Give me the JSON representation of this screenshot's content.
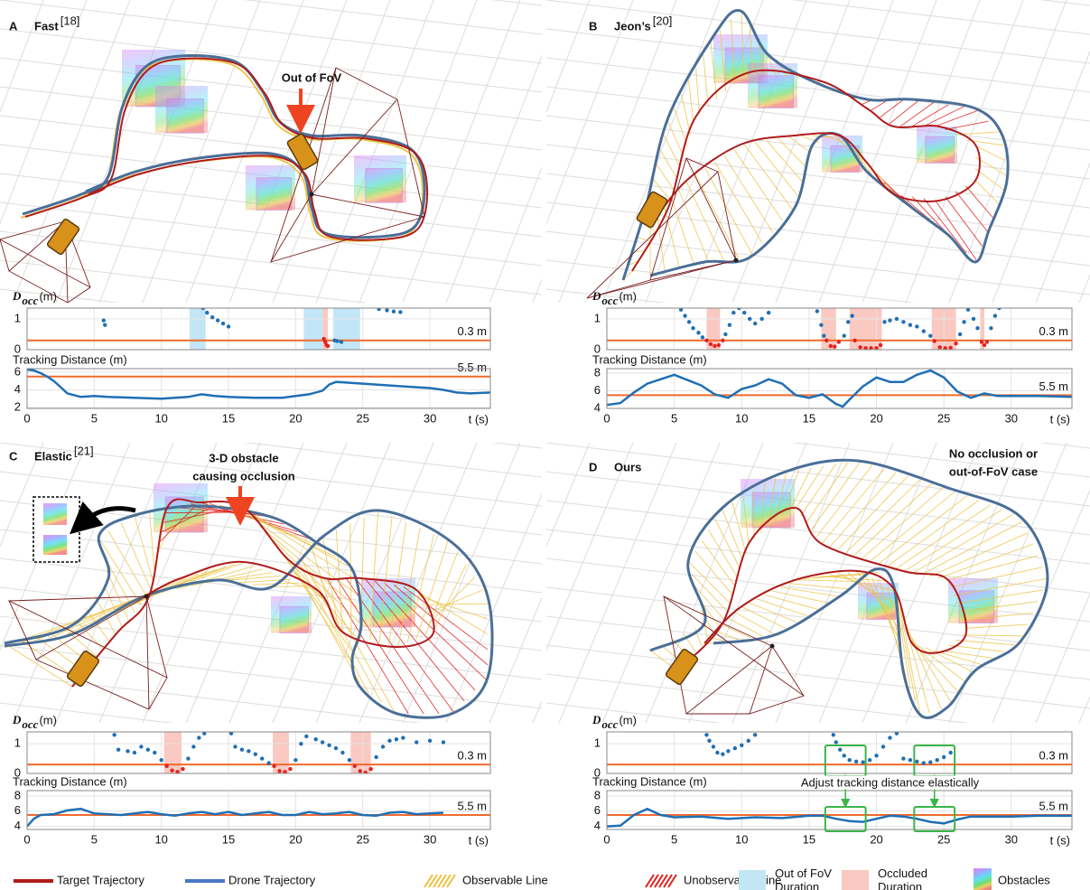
{
  "panels": [
    {
      "letter": "A",
      "title": "Fast",
      "ref": "[18]",
      "annotation": [
        "Out of FoV"
      ]
    },
    {
      "letter": "B",
      "title": "Jeon’s",
      "ref": "[20]"
    },
    {
      "letter": "C",
      "title": "Elastic",
      "ref": "[21]",
      "annotation": [
        "3-D obstacle",
        "causing occlusion"
      ]
    },
    {
      "letter": "D",
      "title": "Ours",
      "annotation": [
        "No occlusion or",
        "out-of-FoV case"
      ],
      "highlights": [
        [
          16.2,
          19.2
        ],
        [
          22.8,
          25.8
        ]
      ],
      "highlight_label": "Adjust tracking distance elastically"
    }
  ],
  "chart_data": [
    {
      "type": "scatter",
      "ylabel": {
        "main": "D",
        "sub": "occ",
        "unit": "(m)"
      },
      "xlim": [
        0,
        34.5
      ],
      "ylim": [
        0,
        1.35
      ],
      "yticks": [
        0,
        1
      ],
      "xticks": [
        0,
        5,
        10,
        15,
        20,
        25,
        30
      ],
      "xtick_labels": false,
      "threshold": {
        "value": 0.3,
        "label": "0.3 m",
        "color": "#f26a2e"
      },
      "spans": [
        {
          "x": [
            12.1,
            13.3
          ],
          "color": "#c3e6f7"
        },
        {
          "x": [
            20.6,
            22.0
          ],
          "color": "#c3e6f7"
        },
        {
          "x": [
            22.0,
            22.4
          ],
          "color": "#f9c9c2"
        },
        {
          "x": [
            22.8,
            24.8
          ],
          "color": "#c3e6f7"
        }
      ],
      "series": [
        {
          "color": "#1f6fb4",
          "x": [
            5.7,
            5.8,
            13.1,
            13.4,
            13.8,
            14.2,
            14.6,
            15,
            22.9,
            23.1,
            23.4,
            26.2,
            26.8,
            27.3,
            27.8
          ],
          "values": [
            0.95,
            0.8,
            1.35,
            1.2,
            1.05,
            0.95,
            0.85,
            0.75,
            0.3,
            0.28,
            0.25,
            1.32,
            1.28,
            1.24,
            1.22
          ]
        },
        {
          "color": "#e8201c",
          "x": [
            22.1,
            22.2,
            22.3,
            22.4
          ],
          "values": [
            0.35,
            0.25,
            0.15,
            0.12
          ]
        }
      ]
    },
    {
      "type": "line",
      "ylabel": "Tracking Distance (m)",
      "xlabel": "t (s)",
      "xlim": [
        0,
        34.5
      ],
      "ylim": [
        1.9,
        6.4
      ],
      "yticks": [
        2,
        4,
        6
      ],
      "xticks": [
        0,
        5,
        10,
        15,
        20,
        25,
        30
      ],
      "xtick_labels": true,
      "threshold": {
        "value": 5.5,
        "label": "5.5 m",
        "color": "#f26a2e"
      },
      "series": [
        {
          "color": "#1f6fb4",
          "x": [
            0,
            0.5,
            1,
            1.5,
            2,
            2.5,
            3,
            4,
            5,
            6,
            8,
            10,
            12,
            13,
            14,
            15,
            17,
            19,
            20,
            21,
            22,
            22.5,
            23,
            24,
            25,
            26,
            28,
            30,
            31,
            32,
            33,
            34.5
          ],
          "values": [
            6.3,
            6.2,
            5.9,
            5.5,
            5.0,
            4.3,
            3.6,
            3.2,
            3.3,
            3.2,
            3.1,
            3.0,
            3.2,
            3.5,
            3.3,
            3.2,
            3.1,
            3.1,
            3.3,
            3.5,
            3.9,
            4.6,
            4.9,
            4.8,
            4.7,
            4.6,
            4.4,
            4.2,
            4.0,
            3.7,
            3.6,
            3.7
          ]
        }
      ]
    },
    {
      "type": "scatter",
      "ylabel": {
        "main": "D",
        "sub": "occ",
        "unit": "(m)"
      },
      "xlim": [
        0,
        34.5
      ],
      "ylim": [
        0,
        1.35
      ],
      "yticks": [
        0,
        1
      ],
      "xticks": [
        0,
        5,
        10,
        15,
        20,
        25,
        30
      ],
      "xtick_labels": false,
      "threshold": {
        "value": 0.3,
        "label": "0.3 m",
        "color": "#f26a2e"
      },
      "spans": [
        {
          "x": [
            7.4,
            8.4
          ],
          "color": "#f9c9c2"
        },
        {
          "x": [
            15.9,
            17.0
          ],
          "color": "#f9c9c2"
        },
        {
          "x": [
            18.0,
            20.4
          ],
          "color": "#f9c9c2"
        },
        {
          "x": [
            24.1,
            25.9
          ],
          "color": "#f9c9c2"
        },
        {
          "x": [
            27.7,
            28.0
          ],
          "color": "#f9c9c2"
        }
      ],
      "series": [
        {
          "color": "#1f6fb4",
          "x": [
            5.5,
            5.8,
            6.1,
            6.4,
            6.8,
            7.1,
            8.8,
            9.1,
            9.4,
            9.8,
            10.2,
            10.6,
            11,
            11.5,
            12,
            15.6,
            15.9,
            16.1,
            17.6,
            17.9,
            18.2,
            20.6,
            21,
            21.5,
            22,
            22.5,
            23,
            23.5,
            24,
            26.2,
            26.5,
            26.8,
            27.2,
            27.5,
            28.5,
            28.8,
            29.1
          ],
          "values": [
            1.3,
            1.1,
            0.9,
            0.7,
            0.55,
            0.4,
            0.5,
            0.8,
            1.2,
            1.35,
            1.2,
            1.0,
            0.85,
            1.0,
            1.2,
            1.25,
            0.8,
            0.45,
            0.45,
            0.9,
            1.1,
            0.9,
            0.95,
            1.0,
            0.9,
            0.8,
            0.75,
            0.6,
            0.45,
            0.5,
            0.9,
            1.3,
            1.0,
            0.7,
            0.7,
            1.1,
            1.35
          ]
        },
        {
          "color": "#e8201c",
          "x": [
            7.4,
            7.7,
            8.0,
            8.3,
            8.6,
            16.3,
            16.6,
            16.9,
            17.2,
            18.4,
            18.8,
            19.2,
            19.6,
            20.0,
            20.3,
            24.3,
            24.7,
            25.1,
            25.5,
            25.9,
            27.8,
            28.0,
            28.2
          ],
          "values": [
            0.3,
            0.18,
            0.12,
            0.15,
            0.3,
            0.3,
            0.12,
            0.1,
            0.25,
            0.3,
            0.08,
            0.05,
            0.05,
            0.05,
            0.15,
            0.28,
            0.08,
            0.05,
            0.06,
            0.2,
            0.25,
            0.15,
            0.25
          ]
        }
      ]
    },
    {
      "type": "line",
      "ylabel": "Tracking Distance (m)",
      "xlabel": "t (s)",
      "xlim": [
        0,
        34.5
      ],
      "ylim": [
        4,
        8.5
      ],
      "yticks": [
        4,
        6,
        8
      ],
      "xticks": [
        0,
        5,
        10,
        15,
        20,
        25,
        30
      ],
      "xtick_labels": true,
      "threshold": {
        "value": 5.5,
        "label": "5.5 m",
        "color": "#f26a2e"
      },
      "series": [
        {
          "color": "#1f6fb4",
          "x": [
            0,
            1,
            2,
            3,
            4,
            5,
            6,
            7,
            8,
            9,
            10,
            11,
            12,
            13,
            14,
            15,
            16,
            17,
            17.5,
            18,
            19,
            20,
            21,
            22,
            23,
            24,
            25,
            26,
            27,
            28,
            29,
            30,
            32,
            34.5
          ],
          "values": [
            4.4,
            4.6,
            5.8,
            6.8,
            7.3,
            7.8,
            7.2,
            6.6,
            5.6,
            5.2,
            6.2,
            6.6,
            7.3,
            6.8,
            5.5,
            5.2,
            5.6,
            4.5,
            4.2,
            5.0,
            6.5,
            7.5,
            7.0,
            7.0,
            7.8,
            8.3,
            7.5,
            5.9,
            5.2,
            5.7,
            5.4,
            5.4,
            5.4,
            5.3
          ]
        }
      ]
    },
    {
      "type": "scatter",
      "ylabel": {
        "main": "D",
        "sub": "occ",
        "unit": "(m)"
      },
      "xlim": [
        0,
        34.5
      ],
      "ylim": [
        0,
        1.4
      ],
      "yticks": [
        0,
        1
      ],
      "xticks": [
        0,
        5,
        10,
        15,
        20,
        25,
        30
      ],
      "xtick_labels": false,
      "threshold": {
        "value": 0.3,
        "label": "0.3 m",
        "color": "#f26a2e"
      },
      "spans": [
        {
          "x": [
            10.2,
            11.5
          ],
          "color": "#f9c9c2"
        },
        {
          "x": [
            18.3,
            19.5
          ],
          "color": "#f9c9c2"
        },
        {
          "x": [
            24.1,
            25.6
          ],
          "color": "#f9c9c2"
        }
      ],
      "series": [
        {
          "color": "#1f6fb4",
          "x": [
            6.5,
            6.8,
            7.5,
            8,
            8.5,
            9,
            9.5,
            10,
            12,
            12.4,
            12.8,
            13.2,
            15.2,
            15.5,
            16,
            16.5,
            17,
            17.5,
            18,
            20,
            20.4,
            20.8,
            21.5,
            22,
            22.5,
            23,
            23.5,
            24,
            26,
            26.5,
            27,
            27.5,
            28,
            29,
            30,
            31
          ],
          "values": [
            1.3,
            0.8,
            0.75,
            0.7,
            0.9,
            0.8,
            0.7,
            0.45,
            0.5,
            0.9,
            1.2,
            1.35,
            1.35,
            0.9,
            0.8,
            0.75,
            0.65,
            0.5,
            0.35,
            0.45,
            1.0,
            1.25,
            1.15,
            1.05,
            0.95,
            0.85,
            0.7,
            0.45,
            0.55,
            0.9,
            1.1,
            1.15,
            1.2,
            1.05,
            1.1,
            1.05
          ]
        },
        {
          "color": "#e8201c",
          "x": [
            10.4,
            10.8,
            11.2,
            11.6,
            18.4,
            18.8,
            19.2,
            19.6,
            24.4,
            24.8,
            25.2,
            25.6
          ],
          "values": [
            0.25,
            0.1,
            0.05,
            0.15,
            0.25,
            0.08,
            0.05,
            0.15,
            0.25,
            0.08,
            0.03,
            0.15
          ]
        }
      ]
    },
    {
      "type": "line",
      "ylabel": "Tracking Distance (m)",
      "xlabel": "t (s)",
      "xlim": [
        0,
        34.5
      ],
      "ylim": [
        3.6,
        8.7
      ],
      "yticks": [
        4,
        6,
        8
      ],
      "xticks": [
        0,
        5,
        10,
        15,
        20,
        25,
        30
      ],
      "xtick_labels": true,
      "threshold": {
        "value": 5.5,
        "label": "5.5 m",
        "color": "#f26a2e"
      },
      "series": [
        {
          "color": "#1f6fb4",
          "x": [
            0,
            0.5,
            1,
            2,
            3,
            4,
            5,
            6,
            7,
            8,
            9,
            10,
            11,
            12,
            13,
            14,
            15,
            16,
            17,
            18,
            19,
            20,
            21,
            22,
            23,
            24,
            25,
            26,
            27,
            28,
            29,
            30,
            31
          ],
          "values": [
            4.0,
            5.0,
            5.5,
            5.6,
            6.1,
            6.3,
            5.7,
            5.6,
            5.5,
            5.7,
            5.9,
            5.6,
            5.4,
            5.7,
            5.9,
            5.6,
            5.9,
            5.5,
            5.7,
            5.9,
            5.5,
            5.5,
            5.9,
            5.6,
            5.7,
            5.9,
            5.5,
            5.4,
            5.8,
            5.9,
            5.6,
            5.7,
            5.8
          ]
        }
      ]
    },
    {
      "type": "scatter",
      "ylabel": {
        "main": "D",
        "sub": "occ",
        "unit": "(m)"
      },
      "xlim": [
        0,
        34.5
      ],
      "ylim": [
        0,
        1.4
      ],
      "yticks": [
        0,
        1
      ],
      "xticks": [
        0,
        5,
        10,
        15,
        20,
        25,
        30
      ],
      "xtick_labels": false,
      "threshold": {
        "value": 0.3,
        "label": "0.3 m",
        "color": "#f26a2e"
      },
      "series": [
        {
          "color": "#1f6fb4",
          "x": [
            7.4,
            7.6,
            7.9,
            8.2,
            8.6,
            9,
            9.5,
            10,
            10.5,
            11,
            16.8,
            17,
            17.3,
            17.6,
            18,
            18.5,
            19,
            19.5,
            20,
            20.5,
            21,
            21.5,
            22,
            22.5,
            23,
            23.5,
            24,
            24.5,
            25,
            25.5
          ],
          "values": [
            1.3,
            1.1,
            0.9,
            0.7,
            0.65,
            0.75,
            0.85,
            0.95,
            1.1,
            1.3,
            1.3,
            1.05,
            0.8,
            0.6,
            0.45,
            0.4,
            0.38,
            0.45,
            0.6,
            0.9,
            1.2,
            1.35,
            0.5,
            0.45,
            0.4,
            0.35,
            0.38,
            0.45,
            0.55,
            0.7
          ]
        }
      ]
    },
    {
      "type": "line",
      "ylabel": "Tracking Distance (m)",
      "xlabel": "t (s)",
      "xlim": [
        0,
        34.5
      ],
      "ylim": [
        3.6,
        8.7
      ],
      "yticks": [
        4,
        6,
        8
      ],
      "xticks": [
        0,
        5,
        10,
        15,
        20,
        25,
        30
      ],
      "xtick_labels": true,
      "threshold": {
        "value": 5.5,
        "label": "5.5 m",
        "color": "#f26a2e"
      },
      "series": [
        {
          "color": "#1f6fb4",
          "x": [
            0,
            1,
            2,
            3,
            4,
            5,
            7,
            9,
            11,
            13,
            15,
            16,
            17,
            18,
            19,
            20,
            21,
            22,
            23,
            24,
            25,
            26,
            27,
            28,
            30,
            32,
            34.5
          ],
          "values": [
            4.0,
            4.1,
            5.5,
            6.3,
            5.5,
            5.2,
            5.3,
            5.0,
            5.2,
            5.1,
            5.4,
            5.4,
            5.0,
            4.7,
            4.6,
            5.0,
            5.4,
            5.3,
            5.0,
            4.6,
            4.4,
            4.9,
            5.3,
            5.3,
            5.3,
            5.4,
            5.4
          ]
        }
      ]
    }
  ],
  "legend": [
    {
      "name": [
        "Target Trajectory"
      ],
      "color": "#b01c1c",
      "marker": "line"
    },
    {
      "name": [
        "Drone Trajectory"
      ],
      "color": "#4a78c4",
      "marker": "line"
    },
    {
      "name": [
        "Observable Line"
      ],
      "color": "#f0c040",
      "marker": "hatch"
    },
    {
      "name": [
        "Unobservable Line"
      ],
      "color": "#e02020",
      "marker": "hatch"
    },
    {
      "name": [
        "Out of FoV",
        "Duration"
      ],
      "color": "#c3e6f7",
      "marker": "box"
    },
    {
      "name": [
        "Occluded",
        "Duration"
      ],
      "color": "#f9c9c2",
      "marker": "box"
    },
    {
      "name": [
        "Obstacles"
      ],
      "marker": "cube"
    }
  ]
}
